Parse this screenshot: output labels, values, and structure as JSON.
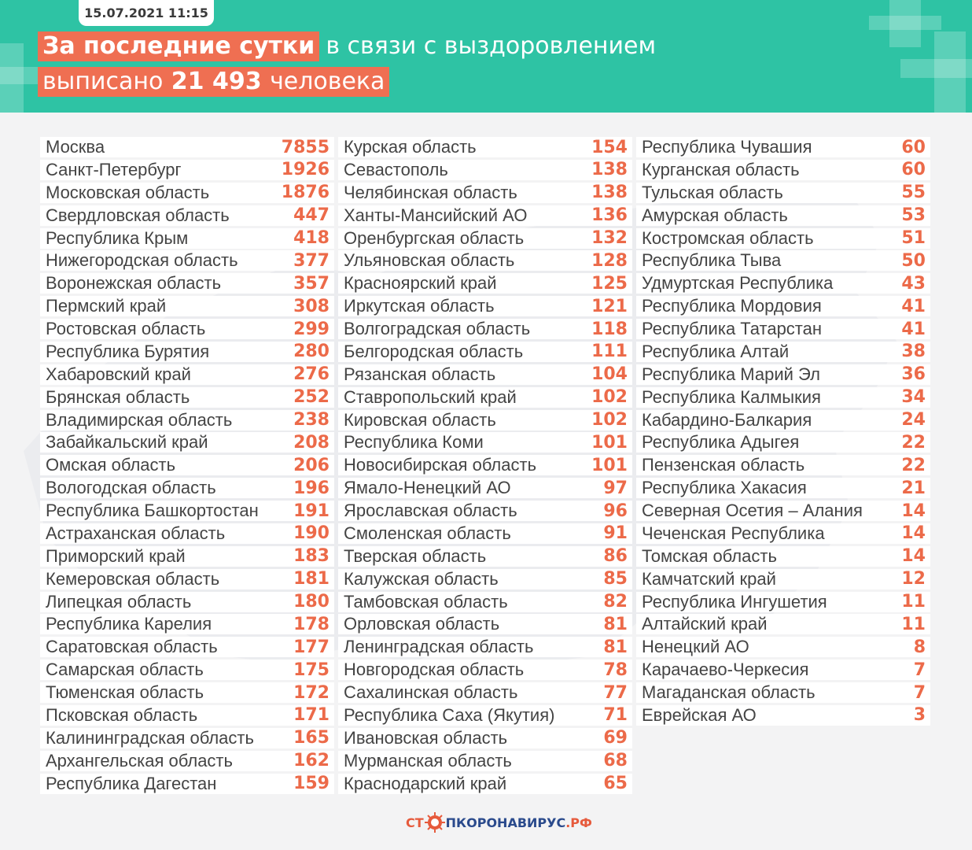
{
  "header": {
    "date": "15.07.2021 11:15",
    "line1_highlight": "За последние сутки",
    "line1_rest": "в связи с выздоровлением",
    "line2_prefix": "выписано",
    "line2_number": "21 493",
    "line2_suffix": "человека"
  },
  "colors": {
    "header_bg": "#2ec3a4",
    "highlight": "#ef6f52",
    "value": "#ec6a49",
    "row_bg": "#ffffff",
    "page_bg": "#f3f3f4"
  },
  "columns": [
    [
      {
        "name": "Москва",
        "value": "7855"
      },
      {
        "name": "Санкт-Петербург",
        "value": "1926"
      },
      {
        "name": "Московская область",
        "value": "1876"
      },
      {
        "name": "Свердловская область",
        "value": "447"
      },
      {
        "name": "Республика Крым",
        "value": "418"
      },
      {
        "name": "Нижегородская область",
        "value": "377"
      },
      {
        "name": "Воронежская область",
        "value": "357"
      },
      {
        "name": "Пермский край",
        "value": "308"
      },
      {
        "name": "Ростовская область",
        "value": "299"
      },
      {
        "name": "Республика Бурятия",
        "value": "280"
      },
      {
        "name": "Хабаровский край",
        "value": "276"
      },
      {
        "name": "Брянская область",
        "value": "252"
      },
      {
        "name": "Владимирская область",
        "value": "238"
      },
      {
        "name": "Забайкальский край",
        "value": "208"
      },
      {
        "name": "Омская область",
        "value": "206"
      },
      {
        "name": "Вологодская область",
        "value": "196"
      },
      {
        "name": "Республика Башкортостан",
        "value": "191"
      },
      {
        "name": "Астраханская область",
        "value": "190"
      },
      {
        "name": "Приморский край",
        "value": "183"
      },
      {
        "name": "Кемеровская область",
        "value": "181"
      },
      {
        "name": "Липецкая область",
        "value": "180"
      },
      {
        "name": "Республика Карелия",
        "value": "178"
      },
      {
        "name": "Саратовская область",
        "value": "177"
      },
      {
        "name": "Самарская область",
        "value": "175"
      },
      {
        "name": "Тюменская область",
        "value": "172"
      },
      {
        "name": "Псковская область",
        "value": "171"
      },
      {
        "name": "Калининградская область",
        "value": "165"
      },
      {
        "name": "Архангельская область",
        "value": "162"
      },
      {
        "name": "Республика Дагестан",
        "value": "159"
      }
    ],
    [
      {
        "name": "Курская область",
        "value": "154"
      },
      {
        "name": "Севастополь",
        "value": "138"
      },
      {
        "name": "Челябинская область",
        "value": "138"
      },
      {
        "name": "Ханты-Мансийский АО",
        "value": "136"
      },
      {
        "name": "Оренбургская область",
        "value": "132"
      },
      {
        "name": "Ульяновская область",
        "value": "128"
      },
      {
        "name": "Красноярский край",
        "value": "125"
      },
      {
        "name": "Иркутская область",
        "value": "121"
      },
      {
        "name": "Волгоградская область",
        "value": "118"
      },
      {
        "name": "Белгородская область",
        "value": "111"
      },
      {
        "name": "Рязанская область",
        "value": "104"
      },
      {
        "name": "Ставропольский край",
        "value": "102"
      },
      {
        "name": "Кировская область",
        "value": "102"
      },
      {
        "name": "Республика Коми",
        "value": "101"
      },
      {
        "name": "Новосибирская область",
        "value": "101"
      },
      {
        "name": "Ямало-Ненецкий АО",
        "value": "97"
      },
      {
        "name": "Ярославская область",
        "value": "96"
      },
      {
        "name": "Смоленская область",
        "value": "91"
      },
      {
        "name": "Тверская область",
        "value": "86"
      },
      {
        "name": "Калужская область",
        "value": "85"
      },
      {
        "name": "Тамбовская область",
        "value": "82"
      },
      {
        "name": "Орловская область",
        "value": "81"
      },
      {
        "name": "Ленинградская область",
        "value": "81"
      },
      {
        "name": "Новгородская область",
        "value": "78"
      },
      {
        "name": "Сахалинская область",
        "value": "77"
      },
      {
        "name": "Республика Саха (Якутия)",
        "value": "71"
      },
      {
        "name": "Ивановская область",
        "value": "69"
      },
      {
        "name": "Мурманская область",
        "value": "68"
      },
      {
        "name": "Краснодарский край",
        "value": "65"
      }
    ],
    [
      {
        "name": "Республика Чувашия",
        "value": "60"
      },
      {
        "name": "Курганская область",
        "value": "60"
      },
      {
        "name": "Тульская область",
        "value": "55"
      },
      {
        "name": "Амурская область",
        "value": "53"
      },
      {
        "name": "Костромская область",
        "value": "51"
      },
      {
        "name": "Республика Тыва",
        "value": "50"
      },
      {
        "name": "Удмуртская Республика",
        "value": "43"
      },
      {
        "name": "Республика Мордовия",
        "value": "41"
      },
      {
        "name": "Республика Татарстан",
        "value": "41"
      },
      {
        "name": "Республика Алтай",
        "value": "38"
      },
      {
        "name": "Республика Марий Эл",
        "value": "36"
      },
      {
        "name": "Республика Калмыкия",
        "value": "34"
      },
      {
        "name": "Кабардино-Балкария",
        "value": "24"
      },
      {
        "name": "Республика Адыгея",
        "value": "22"
      },
      {
        "name": "Пензенская область",
        "value": "22"
      },
      {
        "name": "Республика Хакасия",
        "value": "21"
      },
      {
        "name": "Северная Осетия – Алания",
        "value": "14"
      },
      {
        "name": "Чеченская Республика",
        "value": "14"
      },
      {
        "name": "Томская область",
        "value": "14"
      },
      {
        "name": "Камчатский край",
        "value": "12"
      },
      {
        "name": "Республика Ингушетия",
        "value": "11"
      },
      {
        "name": "Алтайский край",
        "value": "11"
      },
      {
        "name": "Ненецкий АО",
        "value": "8"
      },
      {
        "name": "Карачаево-Черкесия",
        "value": "7"
      },
      {
        "name": "Магаданская область",
        "value": "7"
      },
      {
        "name": "Еврейская АО",
        "value": "3"
      }
    ]
  ],
  "footer": {
    "logo_part1": "СТ",
    "logo_part2": "ПКОРОНАВИРУС",
    "logo_part3": ".РФ"
  }
}
